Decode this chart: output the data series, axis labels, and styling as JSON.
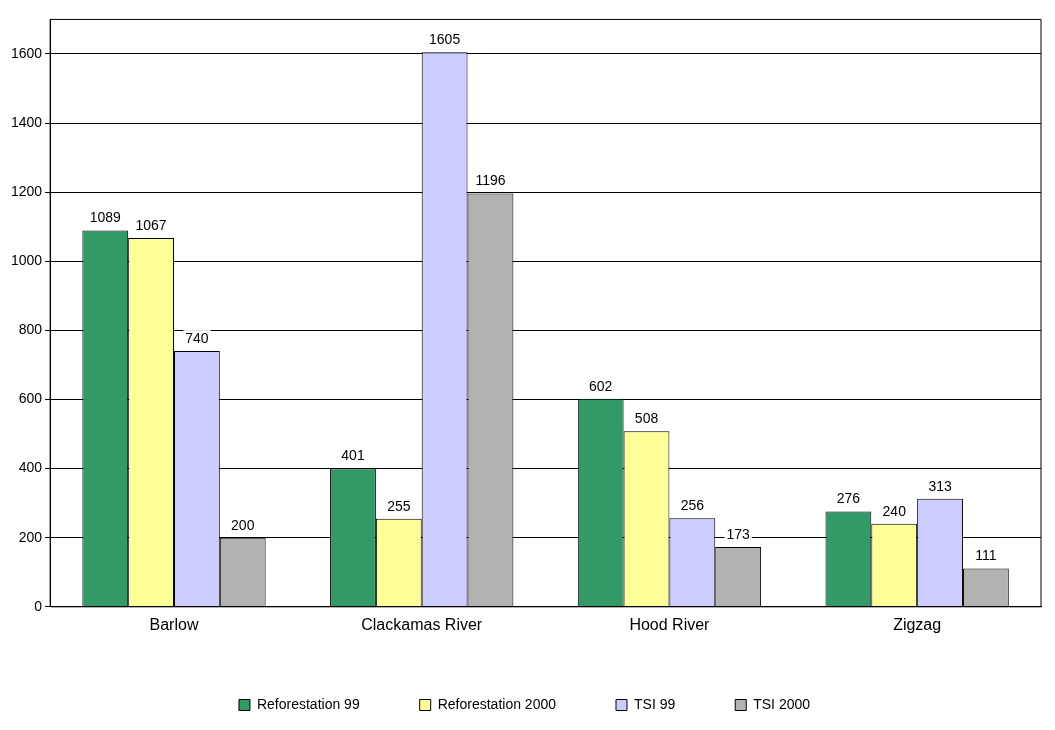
{
  "chart_data": {
    "type": "bar",
    "categories": [
      "Barlow",
      "Clackamas River",
      "Hood River",
      "Zigzag"
    ],
    "series": [
      {
        "name": "Reforestation 99",
        "color": "#339966",
        "values": [
          1089,
          401,
          602,
          276
        ]
      },
      {
        "name": "Reforestation 2000",
        "color": "#ffff99",
        "values": [
          1067,
          255,
          508,
          240
        ]
      },
      {
        "name": "TSI 99",
        "color": "#ccccff",
        "values": [
          740,
          1605,
          256,
          313
        ]
      },
      {
        "name": "TSI 2000",
        "color": "#b2b2b2",
        "values": [
          200,
          1196,
          173,
          111
        ]
      }
    ],
    "ylim": [
      0,
      1700
    ],
    "yticks": [
      0,
      200,
      400,
      600,
      800,
      1000,
      1200,
      1400,
      1600
    ],
    "grid": "y",
    "legend": "bottom",
    "data_labels": true
  }
}
